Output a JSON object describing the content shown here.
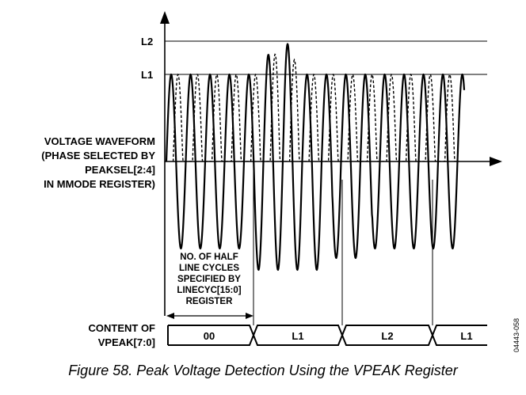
{
  "levels": {
    "l2": "L2",
    "l1": "L1"
  },
  "waveform_label": [
    "VOLTAGE WAVEFORM",
    "(PHASE SELECTED BY",
    "PEAKSEL[2:4]",
    "IN MMODE REGISTER)"
  ],
  "half_cycles_label": [
    "NO. OF HALF",
    "LINE CYCLES",
    "SPECIFIED BY",
    "LINECYC[15:0]",
    "REGISTER"
  ],
  "register_label": [
    "CONTENT OF",
    "VPEAK[7:0]"
  ],
  "register_values": [
    "00",
    "L1",
    "L2",
    "L1"
  ],
  "figure_id": "04443-058",
  "caption": "Figure 58. Peak Voltage Detection Using the VPEAK Register"
}
